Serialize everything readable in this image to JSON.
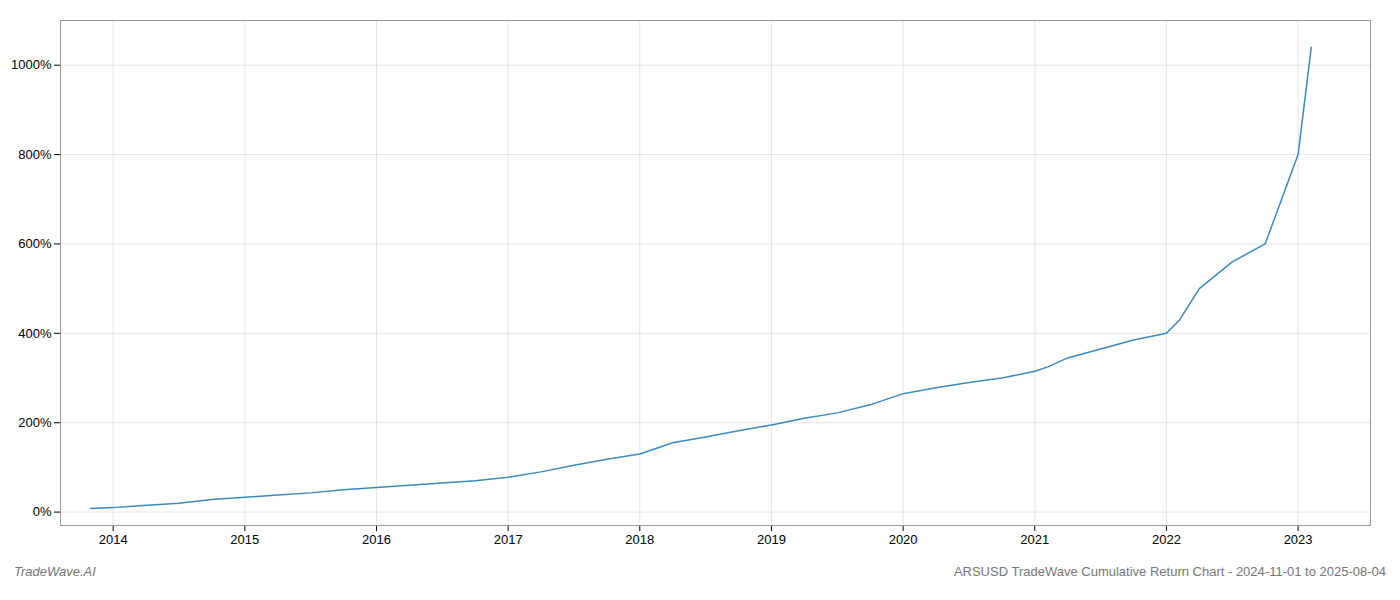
{
  "chart_data": {
    "type": "line",
    "title": "ARSUSD TradeWave Cumulative Return Chart - 2024-11-01 to 2025-08-04",
    "annotations": [
      "TradeWave.AI"
    ],
    "x": [
      2013.83,
      2014.0,
      2014.2,
      2014.5,
      2014.75,
      2015.0,
      2015.25,
      2015.5,
      2015.75,
      2016.0,
      2016.25,
      2016.5,
      2016.75,
      2017.0,
      2017.25,
      2017.5,
      2017.75,
      2018.0,
      2018.25,
      2018.5,
      2018.75,
      2019.0,
      2019.25,
      2019.5,
      2019.75,
      2020.0,
      2020.25,
      2020.5,
      2020.75,
      2021.0,
      2021.1,
      2021.25,
      2021.5,
      2021.75,
      2022.0,
      2022.1,
      2022.25,
      2022.5,
      2022.75,
      2023.0,
      2023.1
    ],
    "values": [
      8,
      10,
      14,
      20,
      28,
      33,
      38,
      43,
      50,
      55,
      60,
      65,
      70,
      78,
      90,
      105,
      118,
      130,
      155,
      168,
      182,
      195,
      210,
      222,
      240,
      265,
      278,
      290,
      300,
      315,
      325,
      345,
      365,
      385,
      400,
      430,
      500,
      560,
      600,
      800,
      1040
    ],
    "color": "#3a8abf",
    "xlim": [
      2013.6,
      2023.55
    ],
    "xticks": [
      2014,
      2015,
      2016,
      2017,
      2018,
      2019,
      2020,
      2021,
      2022,
      2023
    ],
    "ylim": [
      -30,
      1100
    ],
    "yticks": [
      {
        "value": 0,
        "label": "0%"
      },
      {
        "value": 200,
        "label": "200%"
      },
      {
        "value": 400,
        "label": "400%"
      },
      {
        "value": 600,
        "label": "600%"
      },
      {
        "value": 800,
        "label": "800%"
      },
      {
        "value": 1000,
        "label": "1000%"
      }
    ],
    "grid": true
  }
}
